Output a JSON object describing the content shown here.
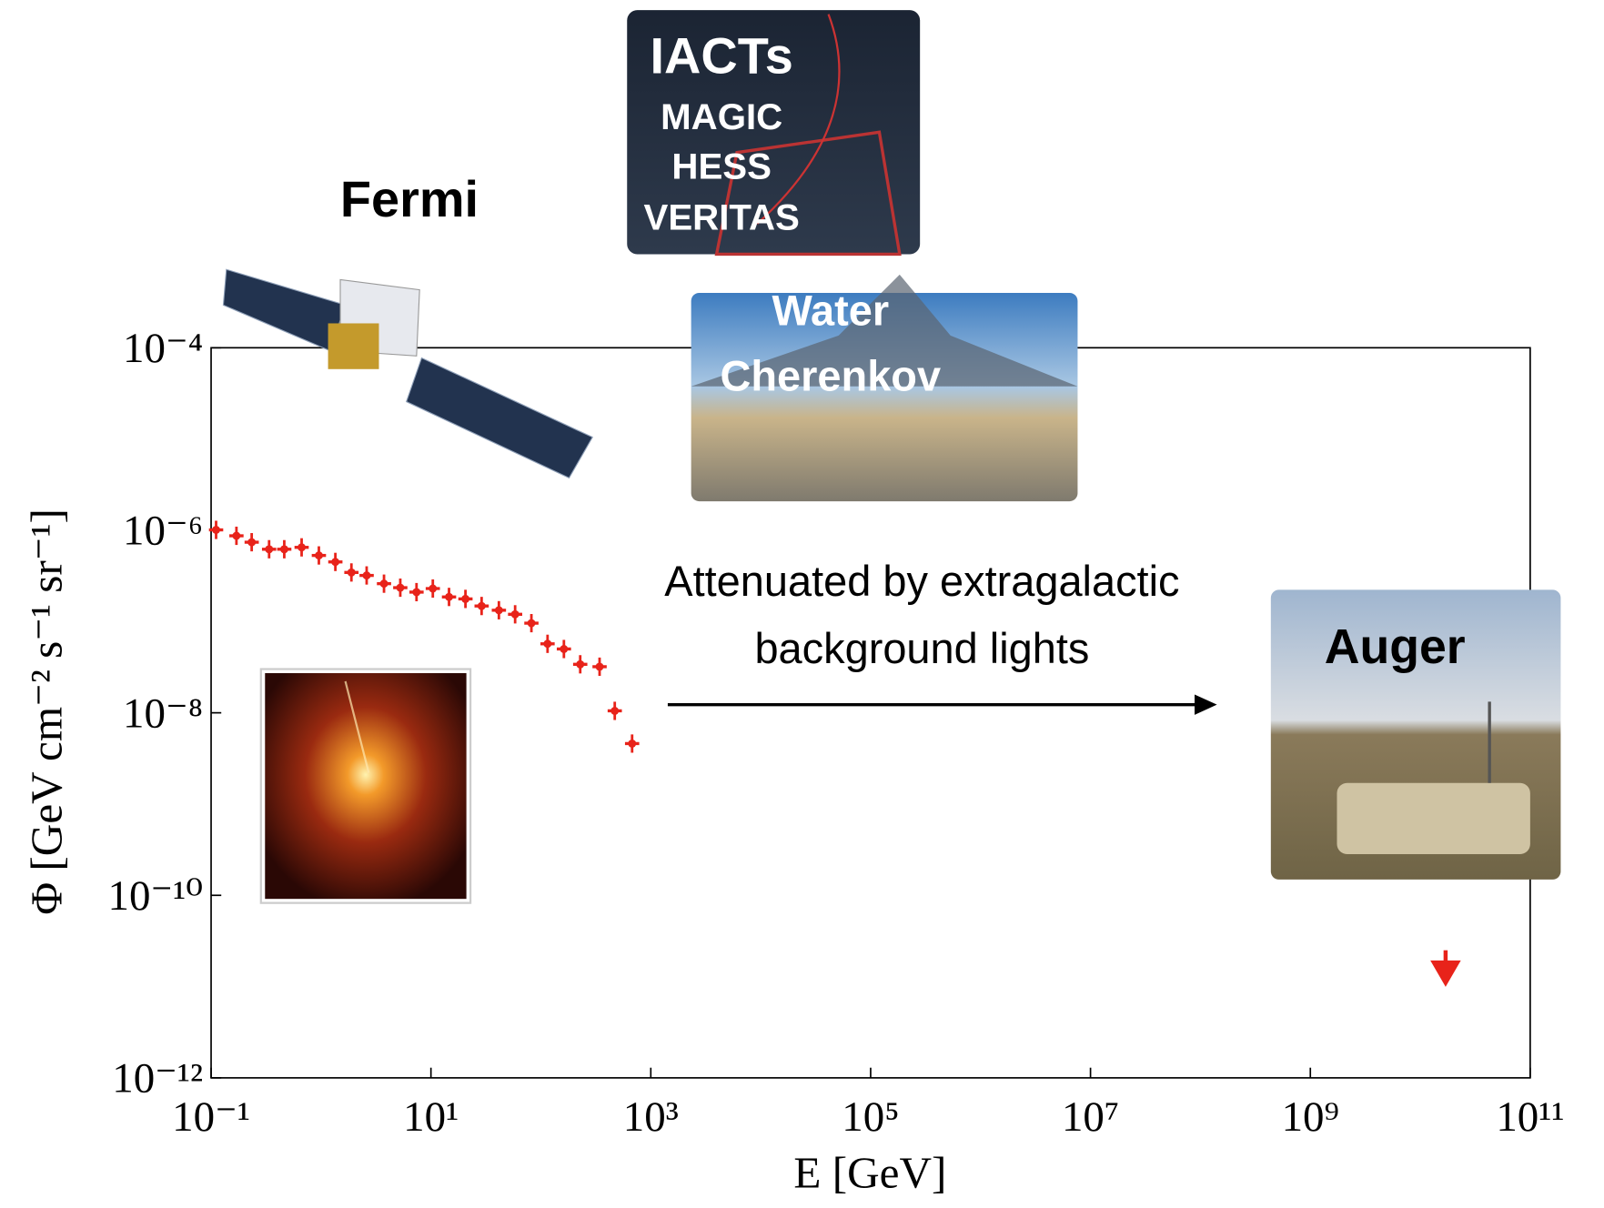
{
  "chart_data": {
    "type": "scatter",
    "xlabel": "E [GeV]",
    "ylabel": "Φ [GeV cm⁻² s⁻¹ sr⁻¹]",
    "xscale": "log",
    "yscale": "log",
    "xlim": [
      0.1,
      100000000000
    ],
    "ylim": [
      1e-12,
      0.0001
    ],
    "xticks": [
      {
        "value": 0.1,
        "label": "10⁻¹"
      },
      {
        "value": 10,
        "label": "10¹"
      },
      {
        "value": 1000,
        "label": "10³"
      },
      {
        "value": 100000,
        "label": "10⁵"
      },
      {
        "value": 10000000,
        "label": "10⁷"
      },
      {
        "value": 1000000000,
        "label": "10⁹"
      },
      {
        "value": 100000000000,
        "label": "10¹¹"
      }
    ],
    "yticks": [
      {
        "value": 1e-12,
        "label": "10⁻¹²"
      },
      {
        "value": 1e-10,
        "label": "10⁻¹⁰"
      },
      {
        "value": 1e-08,
        "label": "10⁻⁸"
      },
      {
        "value": 1e-06,
        "label": "10⁻⁶"
      },
      {
        "value": 0.0001,
        "label": "10⁻⁴"
      }
    ],
    "color": "#e8231a",
    "x": [
      0.111,
      0.17,
      0.234,
      0.337,
      0.463,
      0.666,
      0.956,
      1.35,
      1.89,
      2.6,
      3.74,
      5.26,
      7.39,
      10.4,
      14.6,
      20.6,
      28.9,
      41.5,
      58.3,
      82,
      115,
      162,
      228,
      342,
      470,
      676
    ],
    "values": [
      1.01e-06,
      8.7e-07,
      7.4e-07,
      6.2e-07,
      6.2e-07,
      6.5e-07,
      5.3e-07,
      4.5e-07,
      3.45e-07,
      3.2e-07,
      2.6e-07,
      2.35e-07,
      2.1e-07,
      2.3e-07,
      1.86e-07,
      1.77e-07,
      1.48e-07,
      1.33e-07,
      1.2e-07,
      9.6e-08,
      5.7e-08,
      5e-08,
      3.4e-08,
      3.2e-08,
      1.05e-08,
      4.6e-09
    ],
    "upper_limits": {
      "x": [
        17000000000
      ],
      "values": [
        2.5e-11
      ]
    },
    "annotation": [
      "Attenuated by extragalactic",
      "background lights"
    ],
    "image_labels": {
      "fermi": "Fermi",
      "iacts": [
        "IACTs",
        "MAGIC",
        "HESS",
        "VERITAS"
      ],
      "water": [
        "Water",
        "Cherenkov"
      ],
      "auger": "Auger"
    }
  }
}
